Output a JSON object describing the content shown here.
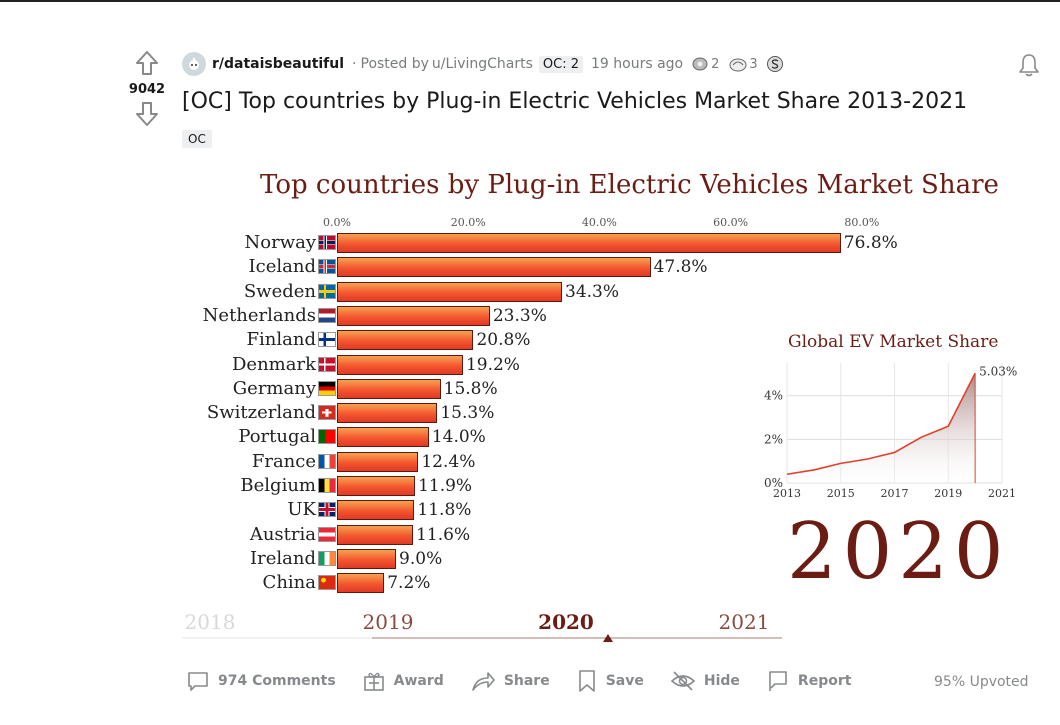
{
  "vote": {
    "count": "9042"
  },
  "header": {
    "subreddit": "r/dataisbeautiful",
    "posted_by": "Posted by",
    "username": "u/LivingCharts",
    "flair": "OC: 2",
    "time": "19 hours ago",
    "awards": [
      {
        "count": "2"
      },
      {
        "count": "3"
      }
    ]
  },
  "post": {
    "title": "[OC] Top countries by Plug-in Electric Vehicles Market Share 2013-2021",
    "flair": "OC"
  },
  "chart_data": [
    {
      "type": "bar",
      "title": "Top countries by Plug-in Electric Vehicles Market Share",
      "x_ticks": [
        "0.0%",
        "20.0%",
        "40.0%",
        "60.0%",
        "80.0%"
      ],
      "xlim": [
        0,
        80
      ],
      "categories": [
        "Norway",
        "Iceland",
        "Sweden",
        "Netherlands",
        "Finland",
        "Denmark",
        "Germany",
        "Switzerland",
        "Portugal",
        "France",
        "Belgium",
        "UK",
        "Austria",
        "Ireland",
        "China"
      ],
      "values": [
        76.8,
        47.8,
        34.3,
        23.3,
        20.8,
        19.2,
        15.8,
        15.3,
        14.0,
        12.4,
        11.9,
        11.8,
        11.6,
        9.0,
        7.2
      ],
      "value_labels": [
        "76.8%",
        "47.8%",
        "34.3%",
        "23.3%",
        "20.8%",
        "19.2%",
        "15.8%",
        "15.3%",
        "14.0%",
        "12.4%",
        "11.9%",
        "11.8%",
        "11.6%",
        "9.0%",
        "7.2%"
      ],
      "current_year": "2020",
      "timeline_years": [
        "2018",
        "2019",
        "2020",
        "2021"
      ]
    },
    {
      "type": "area",
      "title": "Global EV Market Share",
      "x": [
        2013,
        2014,
        2015,
        2016,
        2017,
        2018,
        2019,
        2020
      ],
      "values": [
        0.4,
        0.6,
        0.9,
        1.1,
        1.4,
        2.1,
        2.6,
        5.03
      ],
      "x_ticks": [
        "2013",
        "2015",
        "2017",
        "2019",
        "2021"
      ],
      "y_ticks": [
        "0%",
        "2%",
        "4%"
      ],
      "xlim": [
        2013,
        2021
      ],
      "ylim": [
        0,
        5.5
      ],
      "end_label": "5.03%"
    }
  ],
  "actions": {
    "comments": "974 Comments",
    "award": "Award",
    "share": "Share",
    "save": "Save",
    "hide": "Hide",
    "report": "Report",
    "upvoted": "95% Upvoted"
  },
  "colors": {
    "accent_dark": "#6b1d14",
    "bar_top": "#f7a24f",
    "bar_bottom": "#e03a25",
    "muted": "#878a8c"
  }
}
